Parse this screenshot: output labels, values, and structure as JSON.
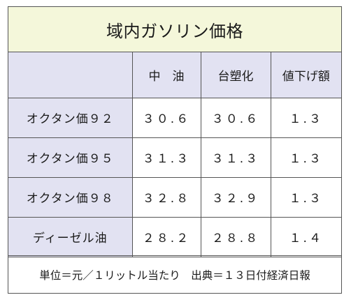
{
  "title": "域内ガソリン価格",
  "table": {
    "headers": [
      "",
      "中　油",
      "台塑化",
      "値下げ額"
    ],
    "rows": [
      {
        "label": "オクタン価９２",
        "cpc": "３０.６",
        "fpcc": "３０.６",
        "cut": "１.３"
      },
      {
        "label": "オクタン価９５",
        "cpc": "３１.３",
        "fpcc": "３１.３",
        "cut": "１.３"
      },
      {
        "label": "オクタン価９８",
        "cpc": "３２.８",
        "fpcc": "３２.９",
        "cut": "１.３"
      },
      {
        "label": "ディーゼル油",
        "cpc": "２８.２",
        "fpcc": "２８.８",
        "cut": "１.４"
      }
    ]
  },
  "footer": "単位＝元／１リットル当たり　出典＝１３日付経済日報"
}
